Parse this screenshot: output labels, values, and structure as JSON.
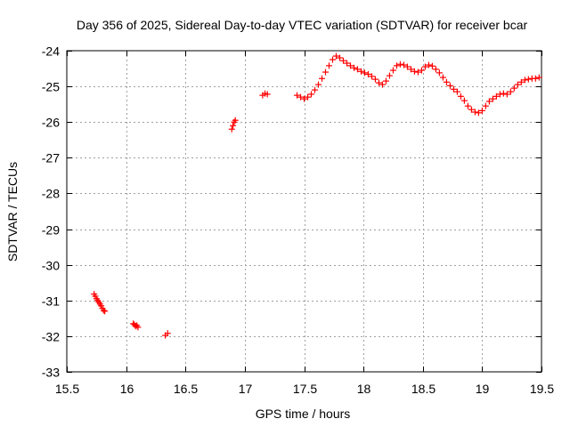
{
  "chart_data": {
    "type": "scatter",
    "title": "Day 356 of 2025, Sidereal Day-to-day VTEC variation (SDTVAR) for receiver bcar",
    "xlabel": "GPS time / hours",
    "ylabel": "SDTVAR / TECUs",
    "xlim": [
      15.5,
      19.5
    ],
    "ylim": [
      -33,
      -24
    ],
    "x_ticks": [
      "15.5",
      "16",
      "16.5",
      "17",
      "17.5",
      "18",
      "18.5",
      "19",
      "19.5"
    ],
    "y_ticks": [
      "-24",
      "-25",
      "-26",
      "-27",
      "-28",
      "-29",
      "-30",
      "-31",
      "-32",
      "-33"
    ],
    "grid": true,
    "marker": "plus",
    "series": [
      {
        "name": "bcar",
        "color": "#ff0000",
        "points": [
          [
            15.73,
            -30.82
          ],
          [
            15.74,
            -30.88
          ],
          [
            15.75,
            -30.95
          ],
          [
            15.76,
            -31.0
          ],
          [
            15.77,
            -31.05
          ],
          [
            15.78,
            -31.1
          ],
          [
            15.79,
            -31.15
          ],
          [
            15.8,
            -31.22
          ],
          [
            15.81,
            -31.28
          ],
          [
            15.82,
            -31.3
          ],
          [
            16.06,
            -31.65
          ],
          [
            16.07,
            -31.68
          ],
          [
            16.08,
            -31.72
          ],
          [
            16.09,
            -31.7
          ],
          [
            16.1,
            -31.75
          ],
          [
            16.33,
            -31.98
          ],
          [
            16.35,
            -31.92
          ],
          [
            16.89,
            -26.2
          ],
          [
            16.9,
            -26.1
          ],
          [
            16.91,
            -26.0
          ],
          [
            16.92,
            -25.95
          ],
          [
            17.15,
            -25.25
          ],
          [
            17.17,
            -25.2
          ],
          [
            17.19,
            -25.22
          ],
          [
            17.44,
            -25.25
          ],
          [
            17.47,
            -25.3
          ],
          [
            17.5,
            -25.35
          ],
          [
            17.53,
            -25.3
          ],
          [
            17.56,
            -25.22
          ],
          [
            17.59,
            -25.1
          ],
          [
            17.62,
            -24.95
          ],
          [
            17.65,
            -24.78
          ],
          [
            17.68,
            -24.6
          ],
          [
            17.71,
            -24.42
          ],
          [
            17.74,
            -24.25
          ],
          [
            17.77,
            -24.15
          ],
          [
            17.8,
            -24.2
          ],
          [
            17.83,
            -24.28
          ],
          [
            17.86,
            -24.35
          ],
          [
            17.89,
            -24.42
          ],
          [
            17.92,
            -24.48
          ],
          [
            17.95,
            -24.52
          ],
          [
            17.98,
            -24.58
          ],
          [
            18.01,
            -24.62
          ],
          [
            18.04,
            -24.66
          ],
          [
            18.07,
            -24.72
          ],
          [
            18.1,
            -24.8
          ],
          [
            18.13,
            -24.9
          ],
          [
            18.16,
            -24.95
          ],
          [
            18.19,
            -24.85
          ],
          [
            18.22,
            -24.7
          ],
          [
            18.25,
            -24.55
          ],
          [
            18.28,
            -24.42
          ],
          [
            18.31,
            -24.38
          ],
          [
            18.34,
            -24.4
          ],
          [
            18.37,
            -24.45
          ],
          [
            18.4,
            -24.52
          ],
          [
            18.43,
            -24.58
          ],
          [
            18.46,
            -24.6
          ],
          [
            18.49,
            -24.55
          ],
          [
            18.52,
            -24.45
          ],
          [
            18.55,
            -24.4
          ],
          [
            18.58,
            -24.43
          ],
          [
            18.61,
            -24.52
          ],
          [
            18.64,
            -24.62
          ],
          [
            18.67,
            -24.75
          ],
          [
            18.7,
            -24.88
          ],
          [
            18.73,
            -24.98
          ],
          [
            18.76,
            -25.08
          ],
          [
            18.79,
            -25.15
          ],
          [
            18.82,
            -25.28
          ],
          [
            18.85,
            -25.4
          ],
          [
            18.88,
            -25.55
          ],
          [
            18.91,
            -25.65
          ],
          [
            18.94,
            -25.72
          ],
          [
            18.97,
            -25.74
          ],
          [
            19.0,
            -25.68
          ],
          [
            19.03,
            -25.55
          ],
          [
            19.06,
            -25.42
          ],
          [
            19.09,
            -25.35
          ],
          [
            19.12,
            -25.28
          ],
          [
            19.15,
            -25.22
          ],
          [
            19.18,
            -25.2
          ],
          [
            19.21,
            -25.22
          ],
          [
            19.24,
            -25.15
          ],
          [
            19.27,
            -25.05
          ],
          [
            19.3,
            -24.95
          ],
          [
            19.33,
            -24.88
          ],
          [
            19.36,
            -24.82
          ],
          [
            19.39,
            -24.8
          ],
          [
            19.42,
            -24.78
          ],
          [
            19.45,
            -24.78
          ],
          [
            19.48,
            -24.75
          ]
        ]
      }
    ]
  }
}
